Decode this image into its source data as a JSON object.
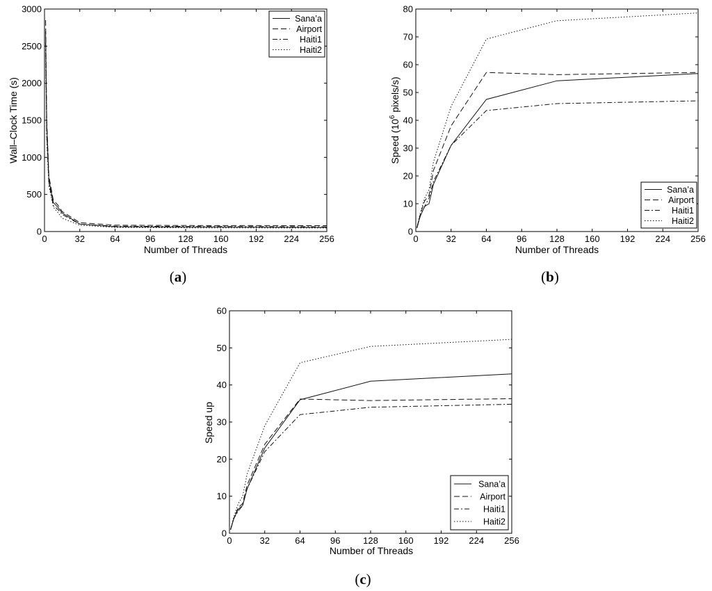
{
  "chart_data": [
    {
      "type": "line",
      "panel_label": "a",
      "xlabel": "Number of Threads",
      "ylabel": "Wall–Clock Time (s)",
      "xlim": [
        0,
        256
      ],
      "ylim": [
        0,
        3000
      ],
      "xticks": [
        0,
        32,
        64,
        96,
        128,
        160,
        192,
        224,
        256
      ],
      "yticks": [
        0,
        500,
        1000,
        1500,
        2000,
        2500,
        3000
      ],
      "legend_position": "top-right",
      "x": [
        1,
        2,
        4,
        8,
        12,
        16,
        32,
        64,
        128,
        256
      ],
      "series": [
        {
          "name": "Sana’a",
          "dash": "solid",
          "values": [
            2700,
            1450,
            700,
            390,
            330,
            250,
            100,
            65,
            60,
            55
          ]
        },
        {
          "name": "Airport",
          "dash": "dashed",
          "values": [
            2850,
            1500,
            750,
            420,
            360,
            270,
            120,
            85,
            82,
            80
          ]
        },
        {
          "name": "Haiti1",
          "dash": "dashdot",
          "values": [
            2550,
            1300,
            650,
            350,
            300,
            230,
            100,
            72,
            68,
            65
          ]
        },
        {
          "name": "Haiti2",
          "dash": "dotted",
          "values": [
            2450,
            1250,
            620,
            330,
            260,
            180,
            85,
            55,
            50,
            48
          ]
        }
      ]
    },
    {
      "type": "line",
      "panel_label": "b",
      "xlabel": "Number of Threads",
      "ylabel_pre": "Speed (10",
      "ylabel_sup": "6",
      "ylabel_post": " pixels/s)",
      "xlim": [
        0,
        256
      ],
      "ylim": [
        0,
        80
      ],
      "xticks": [
        0,
        32,
        64,
        96,
        128,
        160,
        192,
        224,
        256
      ],
      "yticks": [
        0,
        10,
        20,
        30,
        40,
        50,
        60,
        70,
        80
      ],
      "legend_position": "bottom-right",
      "x": [
        1,
        4,
        8,
        12,
        16,
        32,
        64,
        128,
        256
      ],
      "series": [
        {
          "name": "Sana’a",
          "dash": "solid",
          "values": [
            1.3,
            5.5,
            9,
            10,
            17,
            31,
            47.5,
            54.2,
            56.8
          ]
        },
        {
          "name": "Airport",
          "dash": "dashed",
          "values": [
            1.5,
            6,
            11,
            13,
            22,
            38,
            57.2,
            56.4,
            57.2
          ]
        },
        {
          "name": "Haiti1",
          "dash": "dashdot",
          "values": [
            1.2,
            5.5,
            9,
            12,
            18,
            31,
            43.5,
            46,
            47
          ]
        },
        {
          "name": "Haiti2",
          "dash": "dotted",
          "values": [
            1.4,
            6.5,
            12,
            15,
            25,
            45,
            69.2,
            75.8,
            78.6
          ]
        }
      ]
    },
    {
      "type": "line",
      "panel_label": "c",
      "xlabel": "Number of Threads",
      "ylabel": "Speed up",
      "xlim": [
        0,
        256
      ],
      "ylim": [
        0,
        60
      ],
      "xticks": [
        0,
        32,
        64,
        96,
        128,
        160,
        192,
        224,
        256
      ],
      "yticks": [
        0,
        10,
        20,
        30,
        40,
        50,
        60
      ],
      "legend_position": "bottom-right",
      "x": [
        1,
        4,
        8,
        12,
        16,
        32,
        64,
        128,
        256
      ],
      "series": [
        {
          "name": "Sana’a",
          "dash": "solid",
          "values": [
            1,
            4,
            6.5,
            7.5,
            12,
            23,
            36,
            41,
            43
          ]
        },
        {
          "name": "Airport",
          "dash": "dashed",
          "values": [
            1,
            4,
            7,
            8,
            13,
            24,
            36.2,
            35.8,
            36.3
          ]
        },
        {
          "name": "Haiti1",
          "dash": "dashdot",
          "values": [
            1,
            4,
            6,
            7.5,
            12,
            22,
            32,
            34,
            34.8
          ]
        },
        {
          "name": "Haiti2",
          "dash": "dotted",
          "values": [
            1,
            4.5,
            8,
            10,
            16,
            29,
            46,
            50.4,
            52.3
          ]
        }
      ]
    }
  ]
}
